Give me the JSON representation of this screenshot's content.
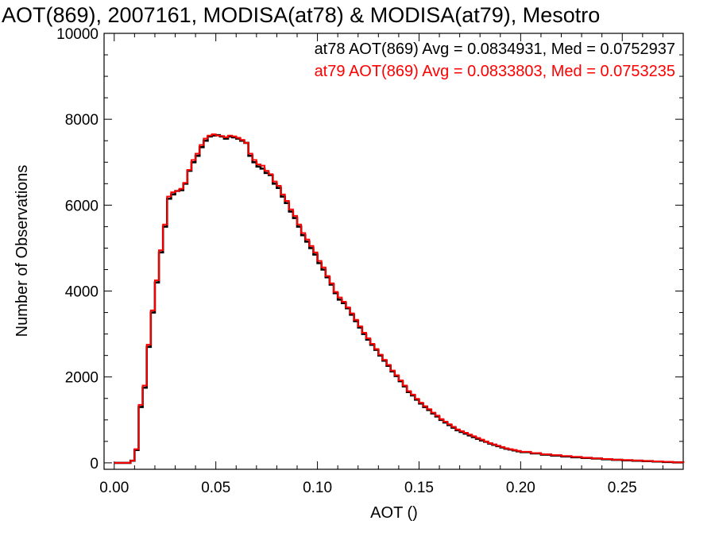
{
  "chart_data": {
    "type": "line",
    "title": "AOT(869), 2007161, MODISA(at78) & MODISA(at79), Mesotro",
    "xlabel": "AOT ()",
    "ylabel": "Number of Observations",
    "xlim": [
      -0.005,
      0.28
    ],
    "ylim": [
      -150,
      10000
    ],
    "x_ticks": [
      "0.00",
      "0.05",
      "0.10",
      "0.15",
      "0.20",
      "0.25"
    ],
    "x_tick_values": [
      0.0,
      0.05,
      0.1,
      0.15,
      0.2,
      0.25
    ],
    "y_ticks": [
      "0",
      "2000",
      "4000",
      "6000",
      "8000",
      "10000"
    ],
    "y_tick_values": [
      0,
      2000,
      4000,
      6000,
      8000,
      10000
    ],
    "grid": false,
    "annotations": [
      {
        "text": "at78 AOT(869) Avg = 0.0834931, Med = 0.0752937",
        "color": "#000000"
      },
      {
        "text": "at79 AOT(869) Avg = 0.0833803, Med = 0.0753235",
        "color": "#ff0000"
      }
    ],
    "x": [
      0.0,
      0.005,
      0.008,
      0.01,
      0.012,
      0.014,
      0.016,
      0.018,
      0.02,
      0.022,
      0.024,
      0.026,
      0.028,
      0.03,
      0.032,
      0.034,
      0.036,
      0.038,
      0.04,
      0.042,
      0.044,
      0.046,
      0.048,
      0.05,
      0.052,
      0.054,
      0.056,
      0.058,
      0.06,
      0.062,
      0.064,
      0.066,
      0.068,
      0.07,
      0.072,
      0.074,
      0.076,
      0.078,
      0.08,
      0.082,
      0.084,
      0.086,
      0.088,
      0.09,
      0.092,
      0.094,
      0.096,
      0.098,
      0.1,
      0.102,
      0.104,
      0.106,
      0.108,
      0.11,
      0.112,
      0.114,
      0.116,
      0.118,
      0.12,
      0.122,
      0.124,
      0.126,
      0.128,
      0.13,
      0.132,
      0.134,
      0.136,
      0.138,
      0.14,
      0.142,
      0.144,
      0.146,
      0.148,
      0.15,
      0.152,
      0.154,
      0.156,
      0.158,
      0.16,
      0.162,
      0.164,
      0.166,
      0.168,
      0.17,
      0.172,
      0.174,
      0.176,
      0.178,
      0.18,
      0.182,
      0.184,
      0.186,
      0.188,
      0.19,
      0.192,
      0.194,
      0.196,
      0.198,
      0.2,
      0.205,
      0.21,
      0.215,
      0.22,
      0.225,
      0.23,
      0.235,
      0.24,
      0.245,
      0.25,
      0.255,
      0.26,
      0.265,
      0.27,
      0.275,
      0.28
    ],
    "series": [
      {
        "color": "#000000",
        "values": [
          0,
          0,
          50,
          300,
          1300,
          1750,
          2700,
          3500,
          4200,
          4900,
          5500,
          6150,
          6250,
          6330,
          6350,
          6500,
          6800,
          7000,
          7150,
          7350,
          7500,
          7600,
          7620,
          7630,
          7600,
          7550,
          7600,
          7580,
          7550,
          7500,
          7450,
          7150,
          7000,
          6900,
          6850,
          6750,
          6700,
          6500,
          6400,
          6200,
          6050,
          5850,
          5700,
          5500,
          5300,
          5150,
          5000,
          4850,
          4650,
          4500,
          4320,
          4150,
          3950,
          3800,
          3720,
          3600,
          3450,
          3300,
          3150,
          3000,
          2870,
          2750,
          2630,
          2500,
          2380,
          2260,
          2130,
          2020,
          1900,
          1780,
          1650,
          1570,
          1470,
          1380,
          1300,
          1230,
          1150,
          1080,
          1000,
          940,
          880,
          820,
          760,
          720,
          680,
          640,
          600,
          560,
          520,
          490,
          450,
          420,
          390,
          360,
          330,
          310,
          290,
          270,
          250,
          220,
          190,
          170,
          150,
          130,
          115,
          100,
          85,
          70,
          60,
          50,
          40,
          30,
          20,
          10,
          0
        ]
      },
      {
        "color": "#ff0000",
        "values": [
          0,
          0,
          50,
          320,
          1350,
          1800,
          2750,
          3550,
          4250,
          4950,
          5550,
          6200,
          6300,
          6330,
          6380,
          6520,
          6820,
          7050,
          7200,
          7400,
          7550,
          7620,
          7650,
          7620,
          7610,
          7580,
          7620,
          7600,
          7570,
          7520,
          7450,
          7200,
          7050,
          6950,
          6920,
          6800,
          6720,
          6550,
          6450,
          6250,
          6100,
          5900,
          5750,
          5550,
          5350,
          5200,
          5050,
          4900,
          4700,
          4550,
          4350,
          4180,
          3980,
          3850,
          3750,
          3620,
          3480,
          3330,
          3180,
          3030,
          2900,
          2770,
          2650,
          2520,
          2400,
          2280,
          2150,
          2040,
          1920,
          1800,
          1670,
          1590,
          1490,
          1400,
          1320,
          1250,
          1170,
          1100,
          1020,
          960,
          900,
          840,
          780,
          740,
          700,
          660,
          620,
          580,
          540,
          500,
          460,
          430,
          400,
          370,
          340,
          320,
          300,
          280,
          260,
          230,
          200,
          180,
          160,
          140,
          120,
          105,
          90,
          75,
          65,
          55,
          45,
          35,
          25,
          12,
          0
        ]
      }
    ]
  }
}
